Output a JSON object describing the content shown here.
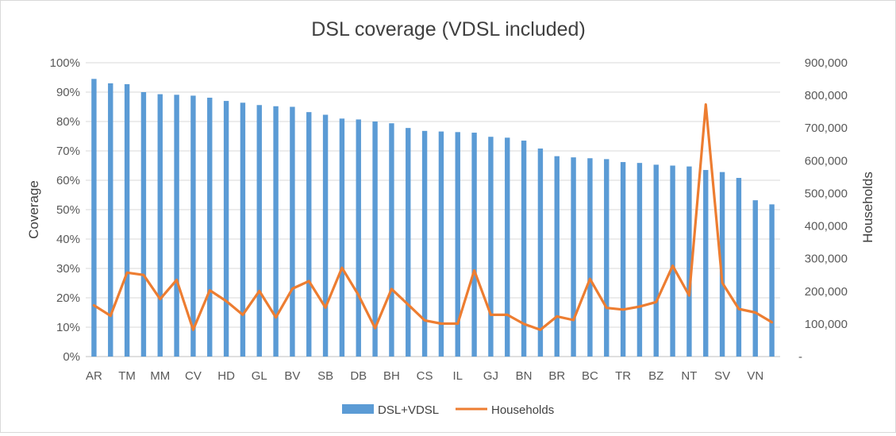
{
  "chart_data": {
    "type": "bar",
    "title": "DSL coverage (VDSL included)",
    "xlabel": "",
    "ylabel": "Coverage",
    "y2label": "Households",
    "ylim": [
      0,
      100
    ],
    "y2lim": [
      0,
      900000
    ],
    "yticks": [
      "0%",
      "10%",
      "20%",
      "30%",
      "40%",
      "50%",
      "60%",
      "70%",
      "80%",
      "90%",
      "100%"
    ],
    "y2ticks": [
      "-",
      "100,000",
      "200,000",
      "300,000",
      "400,000",
      "500,000",
      "600,000",
      "700,000",
      "800,000",
      "900,000"
    ],
    "x_tick_labels": [
      "AR",
      "TM",
      "MM",
      "CV",
      "HD",
      "GL",
      "BV",
      "SB",
      "DB",
      "BH",
      "CS",
      "IL",
      "GJ",
      "BN",
      "BR",
      "BC",
      "TR",
      "BZ",
      "NT",
      "SV",
      "VN"
    ],
    "categories": [
      "AR",
      "",
      "TM",
      "",
      "MM",
      "",
      "CV",
      "",
      "HD",
      "",
      "GL",
      "",
      "BV",
      "",
      "SB",
      "",
      "DB",
      "",
      "BH",
      "",
      "CS",
      "",
      "IL",
      "",
      "GJ",
      "",
      "BN",
      "",
      "BR",
      "",
      "BC",
      "",
      "TR",
      "",
      "BZ",
      "",
      "NT",
      "",
      "SV",
      "",
      "VN",
      ""
    ],
    "grid": true,
    "legend": "bottom",
    "series": [
      {
        "name": "DSL+VDSL",
        "type": "bar",
        "axis": "left",
        "values": [
          94.5,
          93.0,
          92.7,
          90.0,
          89.3,
          89.1,
          88.8,
          88.1,
          87.0,
          86.4,
          85.6,
          85.2,
          85.0,
          83.2,
          82.3,
          81.0,
          80.7,
          80.0,
          79.4,
          77.8,
          76.8,
          76.6,
          76.4,
          76.2,
          74.8,
          74.5,
          73.5,
          70.8,
          68.2,
          67.8,
          67.5,
          67.2,
          66.2,
          65.9,
          65.3,
          65.0,
          64.7,
          63.5,
          62.8,
          60.8,
          53.2,
          51.8
        ]
      },
      {
        "name": "Households",
        "type": "line",
        "axis": "right",
        "values": [
          157000,
          125000,
          257000,
          250000,
          176000,
          235000,
          82000,
          203000,
          170000,
          128000,
          201000,
          120000,
          208000,
          231000,
          150000,
          272000,
          188000,
          87000,
          207000,
          159000,
          111000,
          101000,
          101000,
          264000,
          128000,
          128000,
          100000,
          82000,
          123000,
          112000,
          238000,
          149000,
          144000,
          153000,
          167000,
          278000,
          187000,
          772000,
          226000,
          146000,
          135000,
          105000
        ]
      }
    ]
  },
  "colors": {
    "bar": "#5b9bd5",
    "line": "#ed7d31",
    "grid": "#d9d9d9",
    "text": "#595959"
  }
}
